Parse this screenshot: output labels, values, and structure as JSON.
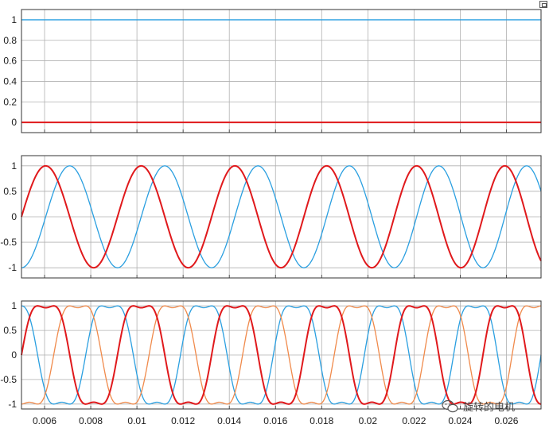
{
  "chart_data": [
    {
      "type": "line",
      "title": "",
      "xlabel": "",
      "ylabel": "",
      "xlim": [
        0.005,
        0.0275
      ],
      "ylim": [
        -0.1,
        1.1
      ],
      "yticks": [
        "1",
        "0.8",
        "0.6",
        "0.4",
        "0.2",
        "0"
      ],
      "ytick_values": [
        1,
        0.8,
        0.6,
        0.4,
        0.2,
        0
      ],
      "grid": true,
      "series": [
        {
          "color": "#2a9fe0",
          "x": [
            0.005,
            0.0275
          ],
          "values": [
            1,
            1
          ]
        },
        {
          "color": "#e0191c",
          "x": [
            0.005,
            0.0275
          ],
          "values": [
            0,
            0
          ]
        }
      ]
    },
    {
      "type": "line",
      "title": "",
      "xlabel": "",
      "ylabel": "",
      "xlim": [
        0.005,
        0.0275
      ],
      "ylim": [
        -1.2,
        1.2
      ],
      "yticks": [
        "1",
        "0.5",
        "0",
        "-0.5",
        "-1"
      ],
      "ytick_values": [
        1,
        0.5,
        0,
        -0.5,
        -1
      ],
      "grid": true,
      "waveform": "sinusoid, amplitude 1, period ~0.0042 s (accelerating slightly)",
      "series": [
        {
          "color": "#e0191c",
          "x": [
            0.005,
            0.006,
            0.0072,
            0.0084,
            0.0097,
            0.0111,
            0.0125,
            0.0139,
            0.0152,
            0.0166,
            0.018,
            0.0193,
            0.0207,
            0.022,
            0.0234,
            0.0248,
            0.0261,
            0.0275
          ],
          "values": [
            0,
            1,
            0,
            -1,
            0,
            1,
            -1,
            1,
            0,
            -1,
            1,
            -1,
            1,
            0,
            -1,
            1,
            0.85,
            -1
          ]
        },
        {
          "color": "#2a9fe0",
          "x": [
            0.005,
            0.0062,
            0.0073,
            0.0087,
            0.0101,
            0.0114,
            0.0128,
            0.0142,
            0.0156,
            0.0169,
            0.0183,
            0.0196,
            0.021,
            0.0224,
            0.0237,
            0.0251,
            0.0264,
            0.0275
          ],
          "values": [
            -1,
            0,
            1,
            -1,
            0,
            1,
            -1,
            1,
            0,
            -1,
            1,
            -1,
            1,
            0,
            -1,
            1,
            1,
            0.6
          ]
        }
      ]
    },
    {
      "type": "line",
      "title": "",
      "xlabel": "",
      "ylabel": "",
      "xlim": [
        0.005,
        0.0275
      ],
      "ylim": [
        -1.1,
        1.1
      ],
      "yticks": [
        "1",
        "0.5",
        "0",
        "-0.5",
        "-1"
      ],
      "ytick_values": [
        1,
        0.5,
        0,
        -0.5,
        -1
      ],
      "xticks": [
        "0.006",
        "0.008",
        "0.01",
        "0.012",
        "0.014",
        "0.016",
        "0.018",
        "0.02",
        "0.022",
        "0.024",
        "0.026"
      ],
      "xtick_values": [
        0.006,
        0.008,
        0.01,
        0.012,
        0.014,
        0.016,
        0.018,
        0.02,
        0.022,
        0.024,
        0.026
      ],
      "grid": true,
      "waveform": "three-phase saddle-shaped (third-harmonic injected) waves, amplitude 1, phases shifted by 120 degrees",
      "series": [
        {
          "color": "#e0191c",
          "phase_deg": 0
        },
        {
          "color": "#f08a4b",
          "phase_deg": 120
        },
        {
          "color": "#2a9fe0",
          "phase_deg": 240
        }
      ]
    }
  ],
  "watermark": {
    "icon": "wechat-icon",
    "text": "旋转的电机"
  },
  "corner_button": {
    "icon": "window-restore-icon"
  }
}
